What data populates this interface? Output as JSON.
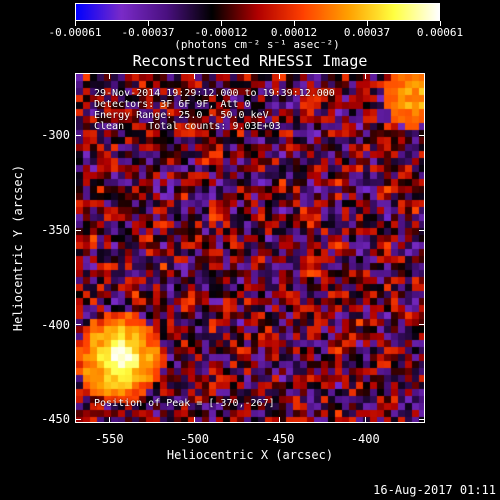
{
  "colorbar": {
    "tick_labels": [
      "-0.00061",
      "-0.00037",
      "-0.00012",
      "0.00012",
      "0.00037",
      "0.00061"
    ],
    "unit_label": "(photons cm⁻² s⁻¹ asec⁻²)",
    "colors": [
      "#0000ff",
      "#7a2bc8",
      "#4a1080",
      "#000000",
      "#b00000",
      "#ff4000",
      "#ffa000",
      "#ffff40",
      "#ffffff"
    ]
  },
  "title": "Reconstructed RHESSI Image",
  "overlay": {
    "time_range": "29-Nov-2014 19:29:12.000 to 19:39:12.000",
    "detectors": "Detectors: 3F 6F 9F, Att 0",
    "energy": "Energy Range: 25.0 - 50.0 keV",
    "clean": "Clean    Total counts: 9.03E+03",
    "peak": "Position of Peak = [-370,-267]"
  },
  "axes": {
    "xlabel": "Heliocentric X (arcsec)",
    "ylabel": "Heliocentric Y (arcsec)",
    "x_ticks": [
      "-550",
      "-500",
      "-450",
      "-400"
    ],
    "y_ticks": [
      "-300",
      "-350",
      "-400",
      "-450"
    ],
    "x_range": [
      -570,
      -365
    ],
    "y_range": [
      -452,
      -267
    ]
  },
  "datestamp": "16-Aug-2017 01:11"
}
